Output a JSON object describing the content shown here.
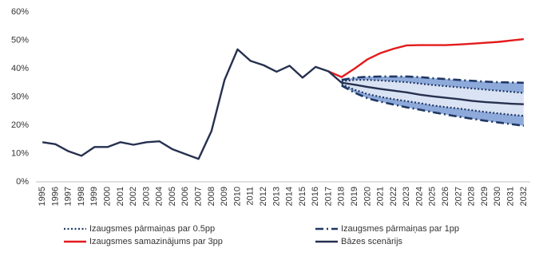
{
  "chart_data": {
    "type": "line",
    "categories": [
      "1995",
      "1996",
      "1997",
      "1998",
      "1999",
      "2000",
      "2001",
      "2002",
      "2003",
      "2004",
      "2005",
      "2006",
      "2007",
      "2008",
      "2009",
      "2010",
      "2011",
      "2012",
      "2013",
      "2014",
      "2015",
      "2016",
      "2017",
      "2018",
      "2019",
      "2020",
      "2021",
      "2022",
      "2023",
      "2024",
      "2025",
      "2026",
      "2027",
      "2028",
      "2029",
      "2030",
      "2031",
      "2032"
    ],
    "ylim": [
      0,
      60
    ],
    "yticks": [
      {
        "value": 0,
        "label": "0%"
      },
      {
        "value": 10,
        "label": "10%"
      },
      {
        "value": 20,
        "label": "20%"
      },
      {
        "value": 30,
        "label": "30%"
      },
      {
        "value": 40,
        "label": "40%"
      },
      {
        "value": 50,
        "label": "50%"
      },
      {
        "value": 60,
        "label": "60%"
      }
    ],
    "grid": false,
    "series": [
      {
        "name": "Izaugsmes pārmaiņas par 0.5pp",
        "color": "#1f3864",
        "style": "dotted",
        "band_color": "#dae3f3",
        "upper": [
          null,
          null,
          null,
          null,
          null,
          null,
          null,
          null,
          null,
          null,
          null,
          null,
          null,
          null,
          null,
          null,
          null,
          null,
          null,
          null,
          null,
          null,
          null,
          35.5,
          36,
          36,
          35.8,
          35.5,
          35.2,
          34.7,
          34.2,
          33.8,
          33.4,
          33,
          32.6,
          32.2,
          31.8,
          31.4
        ],
        "lower": [
          null,
          null,
          null,
          null,
          null,
          null,
          null,
          null,
          null,
          null,
          null,
          null,
          null,
          null,
          null,
          null,
          null,
          null,
          null,
          null,
          null,
          null,
          null,
          34.5,
          32.5,
          31,
          30,
          29.2,
          28.5,
          27.8,
          27,
          26.4,
          25.9,
          25.3,
          24.7,
          24.2,
          23.7,
          23.3
        ]
      },
      {
        "name": "Izaugsmes pārmaiņas par 1pp",
        "color": "#1f3864",
        "style": "dashdot",
        "band_color": "#8eaadb",
        "upper": [
          null,
          null,
          null,
          null,
          null,
          null,
          null,
          null,
          null,
          null,
          null,
          null,
          null,
          null,
          null,
          null,
          null,
          null,
          null,
          null,
          null,
          null,
          null,
          36,
          36.8,
          37.1,
          37.2,
          37.2,
          37.2,
          37,
          36.6,
          36.3,
          36,
          35.7,
          35.4,
          35.2,
          35.1,
          35
        ],
        "lower": [
          null,
          null,
          null,
          null,
          null,
          null,
          null,
          null,
          null,
          null,
          null,
          null,
          null,
          null,
          null,
          null,
          null,
          null,
          null,
          null,
          null,
          null,
          null,
          34,
          31.5,
          29.5,
          28.3,
          27.3,
          26.3,
          25.5,
          24.6,
          23.8,
          23,
          22.3,
          21.6,
          21,
          20.4,
          19.8
        ]
      },
      {
        "name": "Izaugsmes samazinājums par 3pp",
        "color": "#e31a1c",
        "style": "solid",
        "values": [
          null,
          null,
          null,
          null,
          null,
          null,
          null,
          null,
          null,
          null,
          null,
          null,
          null,
          null,
          null,
          null,
          null,
          null,
          null,
          null,
          null,
          null,
          39,
          37,
          40,
          43.3,
          45.5,
          47,
          48.2,
          48.3,
          48.3,
          48.3,
          48.5,
          48.8,
          49.1,
          49.4,
          49.9,
          50.4
        ]
      },
      {
        "name": "Bāzes scenārijs",
        "color": "#26304f",
        "style": "solid",
        "values": [
          14,
          13.3,
          10.8,
          9.2,
          12.3,
          12.3,
          14,
          13.1,
          14,
          14.3,
          11.5,
          9.8,
          8.1,
          18,
          36,
          46.8,
          42.7,
          41.2,
          38.9,
          41,
          36.8,
          40.6,
          39,
          35,
          34.3,
          33.5,
          32.8,
          32.2,
          31.6,
          30.8,
          30.2,
          29.7,
          29.2,
          28.6,
          28.2,
          27.9,
          27.6,
          27.4
        ]
      }
    ]
  }
}
